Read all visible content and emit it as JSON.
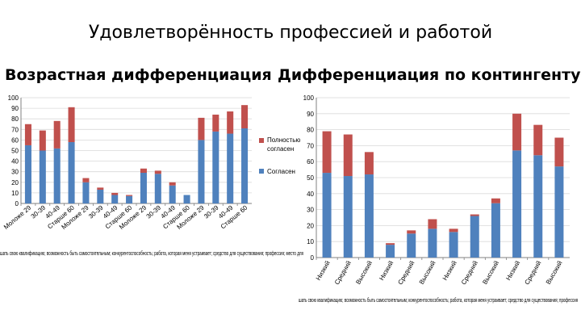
{
  "slide": {
    "title": "Удовлетворённость профессией и работой",
    "left_subtitle": "Возрастная дифференциация",
    "right_subtitle": "Дифференциация по контингенту"
  },
  "colors": {
    "agree": "#4f81bd",
    "fully_agree": "#c0504d",
    "grid": "#d9d9d9",
    "axis": "#808080"
  },
  "chart_data": [
    {
      "type": "bar",
      "stacked": true,
      "ylim": [
        0,
        100
      ],
      "yticks": [
        0,
        10,
        20,
        30,
        40,
        50,
        60,
        70,
        80,
        90,
        100
      ],
      "grid": true,
      "legend_position": "right",
      "categories": [
        "Моложе 29",
        "30-39",
        "40-49",
        "Старше 60",
        "Моложе 29",
        "30-39",
        "40-49",
        "Старше 60",
        "Моложе 29",
        "30-39",
        "40-49",
        "Старше 60",
        "Моложе 29",
        "30-39",
        "40-49",
        "Старше 60"
      ],
      "series": [
        {
          "name": "Согласен",
          "values": [
            55,
            50,
            52,
            58,
            20,
            13,
            8,
            7,
            29,
            28,
            17,
            8,
            60,
            68,
            66,
            71
          ]
        },
        {
          "name": "Полностью согласен",
          "values": [
            20,
            19,
            26,
            33,
            4,
            2,
            2,
            1,
            4,
            3,
            3,
            0,
            21,
            16,
            21,
            22
          ]
        }
      ],
      "group_labels_text": "шать свою квалификацию; возможность быть самостоятельным; конкурентоспособность; работа, которая меня устраивает; средство для существования; профессия; место для"
    },
    {
      "type": "bar",
      "stacked": true,
      "ylim": [
        0,
        100
      ],
      "yticks": [
        0,
        10,
        20,
        30,
        40,
        50,
        60,
        70,
        80,
        90,
        100
      ],
      "grid": true,
      "categories": [
        "Низкий",
        "Средний",
        "Высокий",
        "Низкий",
        "Средний",
        "Высокий",
        "Низкий",
        "Средний",
        "Высокий",
        "Низкий",
        "Средний",
        "Высокий"
      ],
      "series": [
        {
          "name": "Согласен",
          "values": [
            53,
            51,
            52,
            8,
            15,
            18,
            16,
            26,
            34,
            67,
            64,
            57
          ]
        },
        {
          "name": "Полностью согласен",
          "values": [
            26,
            26,
            14,
            1,
            2,
            6,
            2,
            1,
            3,
            23,
            19,
            18
          ]
        }
      ],
      "group_labels_text": "шать свою квалификацию; возможность быть самостоятельным; конкурентоспособность; работа, которая меня устраивает; средство для существования; профессия"
    }
  ]
}
